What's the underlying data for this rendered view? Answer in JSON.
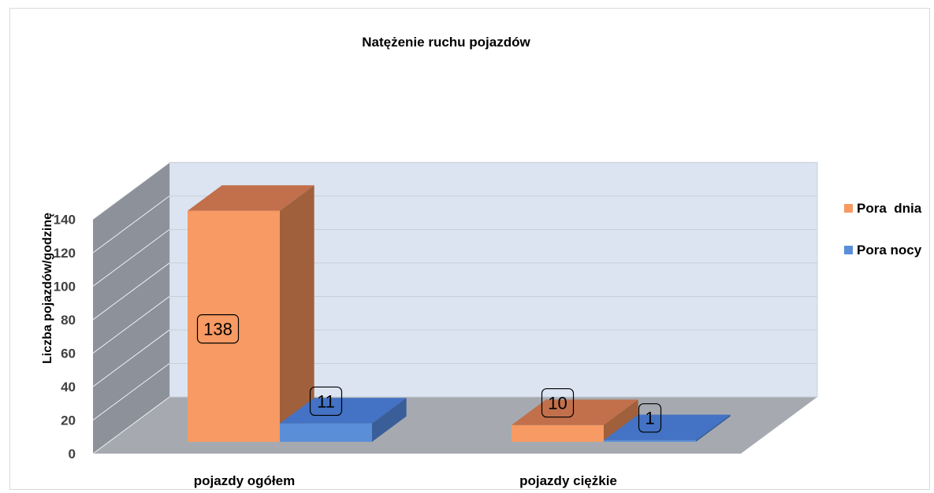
{
  "chart_data": {
    "type": "bar",
    "title": "Natężenie ruchu pojazdów",
    "ylabel": "Liczba pojazdów/godzinę",
    "xlabel": "",
    "ylim": [
      0,
      140
    ],
    "y_ticks": [
      0,
      20,
      40,
      60,
      80,
      100,
      120,
      140
    ],
    "y_tick_labels": [
      "0",
      "20",
      "40",
      "60",
      "80",
      "100",
      "120",
      "140"
    ],
    "categories": [
      "pojazdy ogółem",
      "pojazdy ciężkie"
    ],
    "series": [
      {
        "name": "Pora  dnia",
        "values": [
          138,
          10
        ],
        "color": "#F79A63",
        "top_color": "#C1704B",
        "side_color": "#A0603C"
      },
      {
        "name": "Pora nocy",
        "values": [
          11,
          1
        ],
        "color": "#5A8FD8",
        "top_color": "#4472C4",
        "side_color": "#3A5E98"
      }
    ],
    "data_labels": [
      "138",
      "11",
      "10",
      "1"
    ],
    "legend_position": "right",
    "grid": true,
    "style": "3d-column",
    "back_wall_color": "#DCE4F2",
    "side_wall_color": "#8C919A",
    "floor_color": "#A6AAB0"
  }
}
